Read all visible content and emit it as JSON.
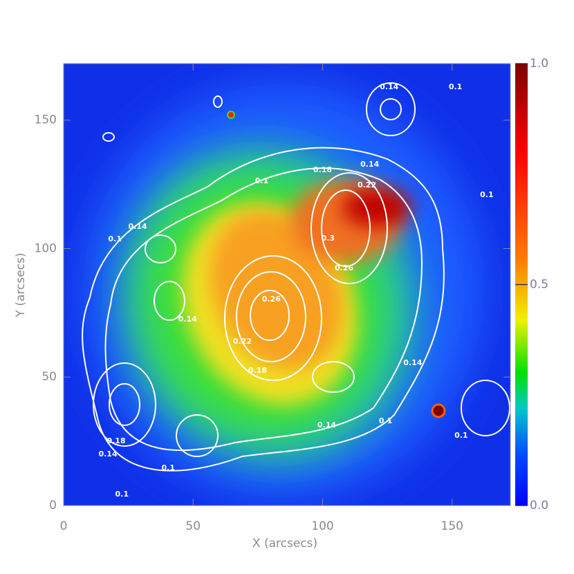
{
  "chart_data": {
    "type": "heatmap",
    "xlabel": "X (arcsecs)",
    "ylabel": "Y (arcsecs)",
    "xlim": [
      0,
      172.5
    ],
    "ylim": [
      0,
      172
    ],
    "xticks": [
      0,
      50,
      100,
      150
    ],
    "yticks": [
      0,
      50,
      100,
      150
    ],
    "colorbar": {
      "lim": [
        0,
        1
      ],
      "ticks": [
        {
          "value": 0,
          "label": "0.0"
        },
        {
          "value": 0.5,
          "label": "0.5"
        },
        {
          "value": 1,
          "label": "1.0"
        }
      ]
    },
    "contour_labels": [
      {
        "x": 125.7,
        "y": 162.9,
        "value": 0.14
      },
      {
        "x": 151.3,
        "y": 162.9,
        "value": 0.1
      },
      {
        "x": 100,
        "y": 130.5,
        "value": 0.18
      },
      {
        "x": 118.2,
        "y": 132.7,
        "value": 0.14
      },
      {
        "x": 76.5,
        "y": 126.2,
        "value": 0.1
      },
      {
        "x": 117.1,
        "y": 124.6,
        "value": 0.22
      },
      {
        "x": 163.4,
        "y": 120.9,
        "value": 0.1
      },
      {
        "x": 28.6,
        "y": 108.5,
        "value": 0.14
      },
      {
        "x": 19.8,
        "y": 103.6,
        "value": 0.1
      },
      {
        "x": 102.1,
        "y": 103.9,
        "value": 0.3
      },
      {
        "x": 108.3,
        "y": 92.3,
        "value": 0.26
      },
      {
        "x": 80.2,
        "y": 80.2,
        "value": 0.26
      },
      {
        "x": 47.9,
        "y": 72.4,
        "value": 0.14
      },
      {
        "x": 69,
        "y": 63.8,
        "value": 0.22
      },
      {
        "x": 74.9,
        "y": 52.5,
        "value": 0.18
      },
      {
        "x": 134.8,
        "y": 55.4,
        "value": 0.14
      },
      {
        "x": 124.3,
        "y": 32.8,
        "value": 0.1
      },
      {
        "x": 101.6,
        "y": 31.2,
        "value": 0.14
      },
      {
        "x": 153.5,
        "y": 27.2,
        "value": 0.1
      },
      {
        "x": 20.3,
        "y": 25,
        "value": 0.18
      },
      {
        "x": 17.1,
        "y": 19.9,
        "value": 0.14
      },
      {
        "x": 40.4,
        "y": 14.5,
        "value": 0.1
      },
      {
        "x": 22.5,
        "y": 4.3,
        "value": 0.1
      }
    ]
  }
}
